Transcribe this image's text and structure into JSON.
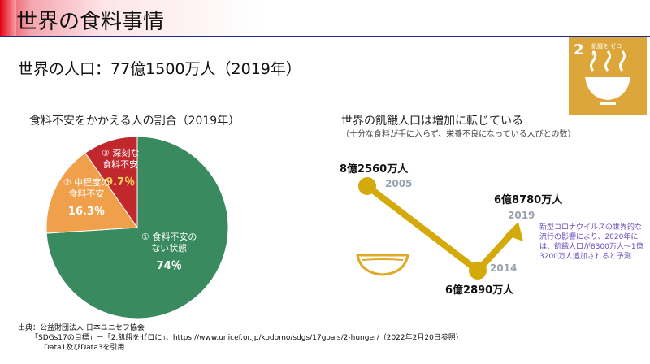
{
  "header": {
    "title": "世界の食料事情"
  },
  "population": "世界の人口：77億1500万人（2019年）",
  "sdg_badge": {
    "number": "2",
    "label": "飢餓を ゼロに",
    "icon": "bowl-steam-icon",
    "color": "#dda63a"
  },
  "pie": {
    "heading": "食料不安をかかえる人の割合（2019年）",
    "slices": [
      {
        "line1": "① 食料不安の",
        "line2": "ない状態",
        "pct": "74％",
        "value": 74,
        "color": "#3a8a5f"
      },
      {
        "line1": "② 中程度の",
        "line2": "食料不安",
        "pct": "16.3％",
        "value": 16.3,
        "color": "#f0a04b"
      },
      {
        "line1": "③ 深刻な",
        "line2": "食料不安",
        "pct": "9.7％",
        "value": 9.7,
        "color": "#c0282d"
      }
    ]
  },
  "hunger": {
    "heading": "世界の飢餓人口は増加に転じている",
    "subheading": "（十分な食料が手に入らず、栄養不良になっている人びとの数）",
    "points": [
      {
        "label": "8億2560万人",
        "year": "2005"
      },
      {
        "label": "6億2890万人",
        "year": "2014"
      },
      {
        "label": "6億8780万人",
        "year": "2019"
      }
    ],
    "line_color": "#d4a90a",
    "note": "新型コロナウイルスの世界的な流行の影響により、2020年には、飢餓人口が8300万人～1億3200万人追加されると予測"
  },
  "source": {
    "line1": "出典：公益財団法人 日本ユニセフ協会",
    "line2": "「SDGs17の目標」－「2.飢餓をゼロに」、https://www.unicef.or.jp/kodomo/sdgs/17goals/2-hunger/（2022年2月20日参照）",
    "line3": "Data1及びData3を引用"
  }
}
